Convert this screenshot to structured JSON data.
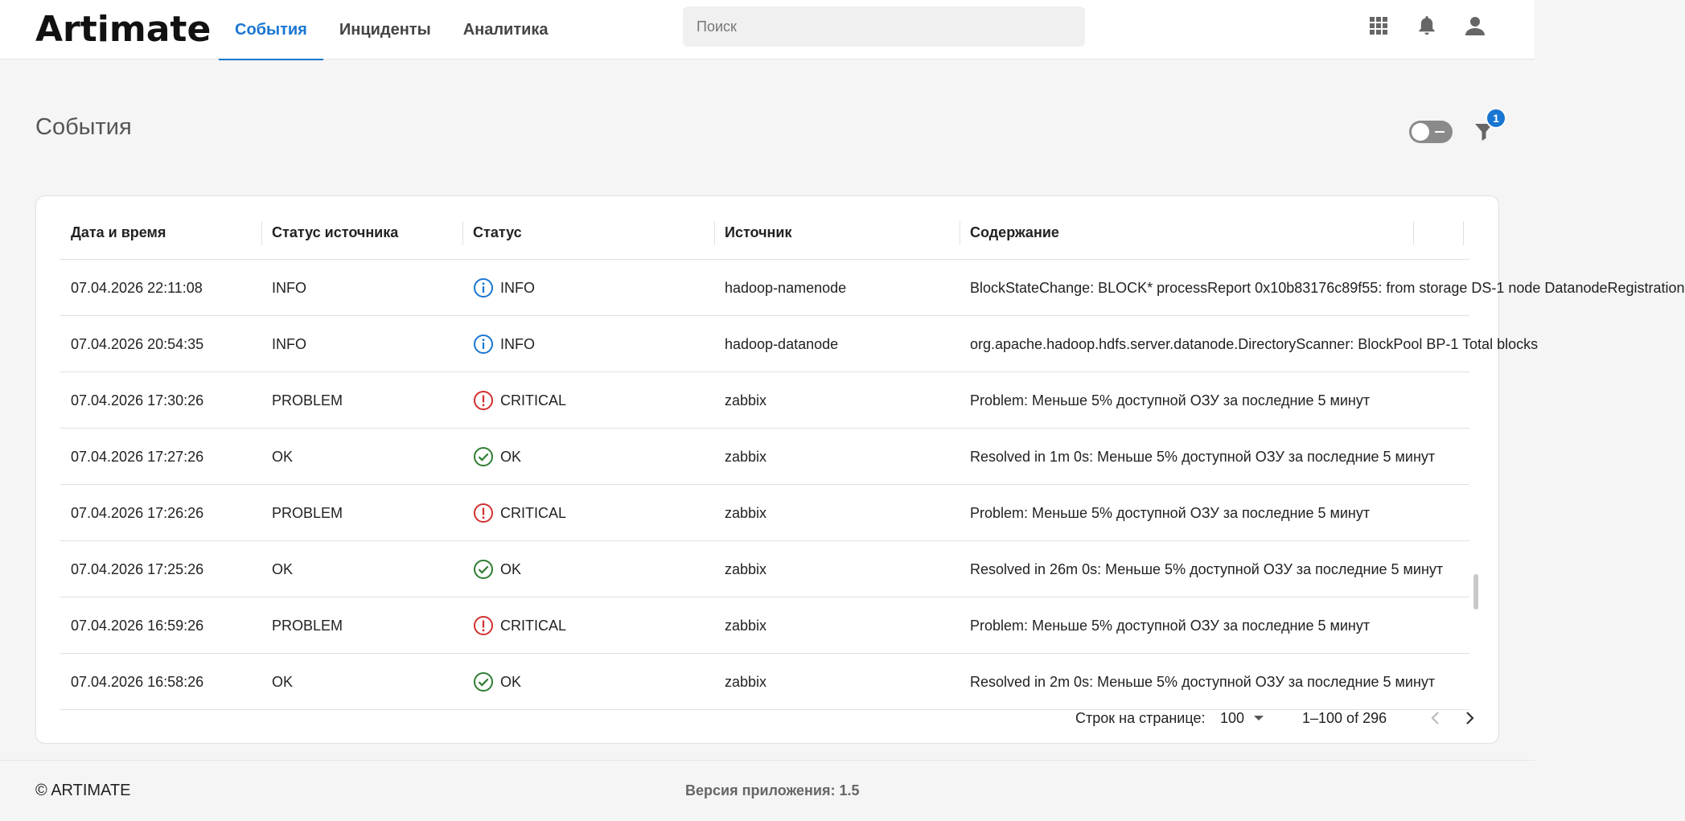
{
  "header": {
    "logo": "Artimate",
    "tabs": [
      {
        "label": "События",
        "active": true
      },
      {
        "label": "Инциденты",
        "active": false
      },
      {
        "label": "Аналитика",
        "active": false
      }
    ],
    "search_placeholder": "Поиск",
    "icons": [
      "apps-grid-icon",
      "bell-icon",
      "account-icon"
    ]
  },
  "page": {
    "title": "События",
    "filter_count": "1"
  },
  "table": {
    "columns": [
      "Дата и время",
      "Статус источника",
      "Статус",
      "Источник",
      "Содержание"
    ],
    "rows": [
      {
        "datetime": "07.04.2026 22:11:08",
        "source_status": "INFO",
        "status": "INFO",
        "status_kind": "info",
        "source": "hadoop-namenode",
        "content": "BlockStateChange: BLOCK* processReport 0x10b83176c89f55: from storage DS-1 node DatanodeRegistration"
      },
      {
        "datetime": "07.04.2026 20:54:35",
        "source_status": "INFO",
        "status": "INFO",
        "status_kind": "info",
        "source": "hadoop-datanode",
        "content": "org.apache.hadoop.hdfs.server.datanode.DirectoryScanner: BlockPool BP-1 Total blocks"
      },
      {
        "datetime": "07.04.2026 17:30:26",
        "source_status": "PROBLEM",
        "status": "CRITICAL",
        "status_kind": "critical",
        "source": "zabbix",
        "content": "Problem: Меньше 5% доступной ОЗУ за последние 5 минут"
      },
      {
        "datetime": "07.04.2026 17:27:26",
        "source_status": "OK",
        "status": "OK",
        "status_kind": "ok",
        "source": "zabbix",
        "content": "Resolved in 1m 0s: Меньше 5% доступной ОЗУ за последние 5 минут"
      },
      {
        "datetime": "07.04.2026 17:26:26",
        "source_status": "PROBLEM",
        "status": "CRITICAL",
        "status_kind": "critical",
        "source": "zabbix",
        "content": "Problem: Меньше 5% доступной ОЗУ за последние 5 минут"
      },
      {
        "datetime": "07.04.2026 17:25:26",
        "source_status": "OK",
        "status": "OK",
        "status_kind": "ok",
        "source": "zabbix",
        "content": "Resolved in 26m 0s: Меньше 5% доступной ОЗУ за последние 5 минут"
      },
      {
        "datetime": "07.04.2026 16:59:26",
        "source_status": "PROBLEM",
        "status": "CRITICAL",
        "status_kind": "critical",
        "source": "zabbix",
        "content": "Problem: Меньше 5% доступной ОЗУ за последние 5 минут"
      },
      {
        "datetime": "07.04.2026 16:58:26",
        "source_status": "OK",
        "status": "OK",
        "status_kind": "ok",
        "source": "zabbix",
        "content": "Resolved in 2m 0s: Меньше 5% доступной ОЗУ за последние 5 минут"
      }
    ]
  },
  "pagination": {
    "rows_label": "Строк на странице:",
    "rows_per_page": "100",
    "range": "1–100 of 296"
  },
  "footer": {
    "copyright": "© ARTIMATE",
    "version": "Версия приложения: 1.5"
  },
  "colors": {
    "accent": "#1976d2",
    "info": "#1976d2",
    "critical": "#d32f2f",
    "ok": "#2e7d32"
  }
}
